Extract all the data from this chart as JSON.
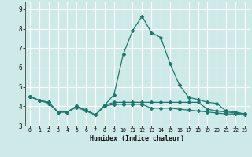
{
  "xlabel": "Humidex (Indice chaleur)",
  "ylabel": "",
  "bg_color": "#ceeae8",
  "grid_color": "#ffffff",
  "line_color": "#1a7a6e",
  "xlim": [
    -0.5,
    23.5
  ],
  "ylim": [
    3.0,
    9.4
  ],
  "xticks": [
    0,
    1,
    2,
    3,
    4,
    5,
    6,
    7,
    8,
    9,
    10,
    11,
    12,
    13,
    14,
    15,
    16,
    17,
    18,
    19,
    20,
    21,
    22,
    23
  ],
  "yticks": [
    3,
    4,
    5,
    6,
    7,
    8,
    9
  ],
  "line1_x": [
    0,
    1,
    2,
    3,
    4,
    5,
    6,
    7,
    8,
    9,
    10,
    11,
    12,
    13,
    14,
    15,
    16,
    17,
    18,
    19,
    20,
    21,
    22,
    23
  ],
  "line1_y": [
    4.5,
    4.3,
    4.2,
    3.7,
    3.7,
    4.0,
    3.8,
    3.55,
    4.05,
    4.6,
    6.7,
    7.9,
    8.65,
    7.8,
    7.55,
    6.2,
    5.1,
    4.45,
    4.35,
    4.2,
    4.15,
    3.75,
    3.7,
    3.6
  ],
  "line2_x": [
    0,
    1,
    2,
    3,
    4,
    5,
    6,
    7,
    8,
    9,
    10,
    11,
    12,
    13,
    14,
    15,
    16,
    17,
    18,
    19,
    20,
    21,
    22,
    23
  ],
  "line2_y": [
    4.5,
    4.3,
    4.2,
    3.7,
    3.7,
    4.0,
    3.8,
    3.55,
    4.05,
    4.2,
    4.2,
    4.2,
    4.2,
    4.2,
    4.2,
    4.2,
    4.2,
    4.2,
    4.2,
    3.85,
    3.75,
    3.7,
    3.65,
    3.6
  ],
  "line3_x": [
    0,
    1,
    2,
    3,
    4,
    5,
    6,
    7,
    8,
    9,
    10,
    11,
    12,
    13,
    14,
    15,
    16,
    17,
    18,
    19,
    20,
    21,
    22,
    23
  ],
  "line3_y": [
    4.5,
    4.3,
    4.15,
    3.7,
    3.7,
    3.95,
    3.75,
    3.55,
    4.0,
    4.1,
    4.1,
    4.1,
    4.1,
    3.9,
    3.9,
    3.9,
    3.85,
    3.8,
    3.75,
    3.7,
    3.65,
    3.6,
    3.6,
    3.55
  ]
}
